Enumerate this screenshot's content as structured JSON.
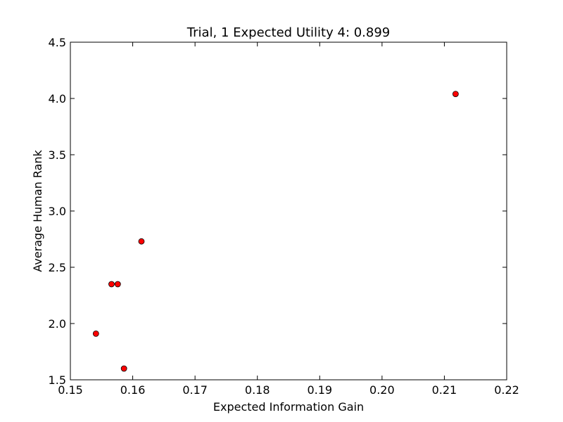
{
  "chart_data": {
    "type": "scatter",
    "title": "Trial, 1 Expected Utility 4: 0.899",
    "xlabel": "Expected Information Gain",
    "ylabel": "Average Human Rank",
    "xlim": [
      0.15,
      0.22
    ],
    "ylim": [
      1.5,
      4.5
    ],
    "xticks": [
      0.15,
      0.16,
      0.17,
      0.18,
      0.19,
      0.2,
      0.21,
      0.22
    ],
    "xtick_labels": [
      "0.15",
      "0.16",
      "0.17",
      "0.18",
      "0.19",
      "0.20",
      "0.21",
      "0.22"
    ],
    "yticks": [
      1.5,
      2.0,
      2.5,
      3.0,
      3.5,
      4.0,
      4.5
    ],
    "ytick_labels": [
      "1.5",
      "2.0",
      "2.5",
      "3.0",
      "3.5",
      "4.0",
      "4.5"
    ],
    "grid": false,
    "marker_color": "#ff0000",
    "marker_edge_color": "#000000",
    "points": [
      {
        "x": 0.1541,
        "y": 1.91
      },
      {
        "x": 0.1566,
        "y": 2.35
      },
      {
        "x": 0.1576,
        "y": 2.35
      },
      {
        "x": 0.1586,
        "y": 1.6
      },
      {
        "x": 0.1614,
        "y": 2.73
      },
      {
        "x": 0.2118,
        "y": 4.04
      }
    ]
  }
}
